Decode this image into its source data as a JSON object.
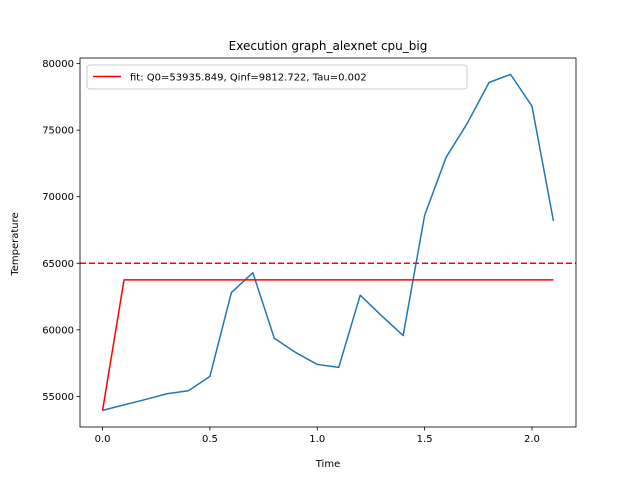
{
  "chart_data": {
    "type": "line",
    "title": "Execution graph_alexnet cpu_big",
    "xlabel": "Time",
    "ylabel": "Temperature",
    "xlim": [
      -0.105,
      2.205
    ],
    "ylim": [
      52700,
      80420
    ],
    "xticks": [
      0.0,
      0.5,
      1.0,
      1.5,
      2.0
    ],
    "xtick_labels": [
      "0.0",
      "0.5",
      "1.0",
      "1.5",
      "2.0"
    ],
    "yticks": [
      55000,
      60000,
      65000,
      70000,
      75000,
      80000
    ],
    "ytick_labels": [
      "55000",
      "60000",
      "65000",
      "70000",
      "75000",
      "80000"
    ],
    "grid": false,
    "legend_position": "top-left",
    "colors": {
      "measured": "#1f77b4",
      "fit": "#ff0000",
      "threshold": "#ff0000"
    },
    "series": [
      {
        "name": "",
        "color": "#1f77b4",
        "x": [
          0.0,
          0.1,
          0.2,
          0.3,
          0.4,
          0.5,
          0.6,
          0.7,
          0.8,
          0.9,
          1.0,
          1.1,
          1.2,
          1.3,
          1.4,
          1.5,
          1.6,
          1.7,
          1.8,
          1.9,
          2.0,
          2.1
        ],
        "y": [
          53950,
          54360,
          54770,
          55200,
          55420,
          56500,
          62800,
          64290,
          59370,
          58290,
          57400,
          57180,
          62600,
          61050,
          59570,
          68600,
          72960,
          75550,
          78580,
          79190,
          76800,
          68180
        ]
      },
      {
        "name": "fit: Q0=53935.849, Qinf=9812.722, Tau=0.002",
        "color": "#ff0000",
        "x": [
          0.0,
          0.1,
          0.2,
          0.3,
          0.4,
          0.5,
          0.6,
          0.7,
          0.8,
          0.9,
          1.0,
          1.1,
          1.2,
          1.3,
          1.4,
          1.5,
          1.6,
          1.7,
          1.8,
          1.9,
          2.0,
          2.1
        ],
        "y": [
          53936,
          63749,
          63749,
          63749,
          63749,
          63749,
          63749,
          63749,
          63749,
          63749,
          63749,
          63749,
          63749,
          63749,
          63749,
          63749,
          63749,
          63749,
          63749,
          63749,
          63749,
          63749
        ]
      }
    ],
    "threshold_line": {
      "y": 65000,
      "style": "dashed",
      "color": "#ff0000"
    },
    "legend": [
      "fit: Q0=53935.849, Qinf=9812.722, Tau=0.002"
    ]
  }
}
